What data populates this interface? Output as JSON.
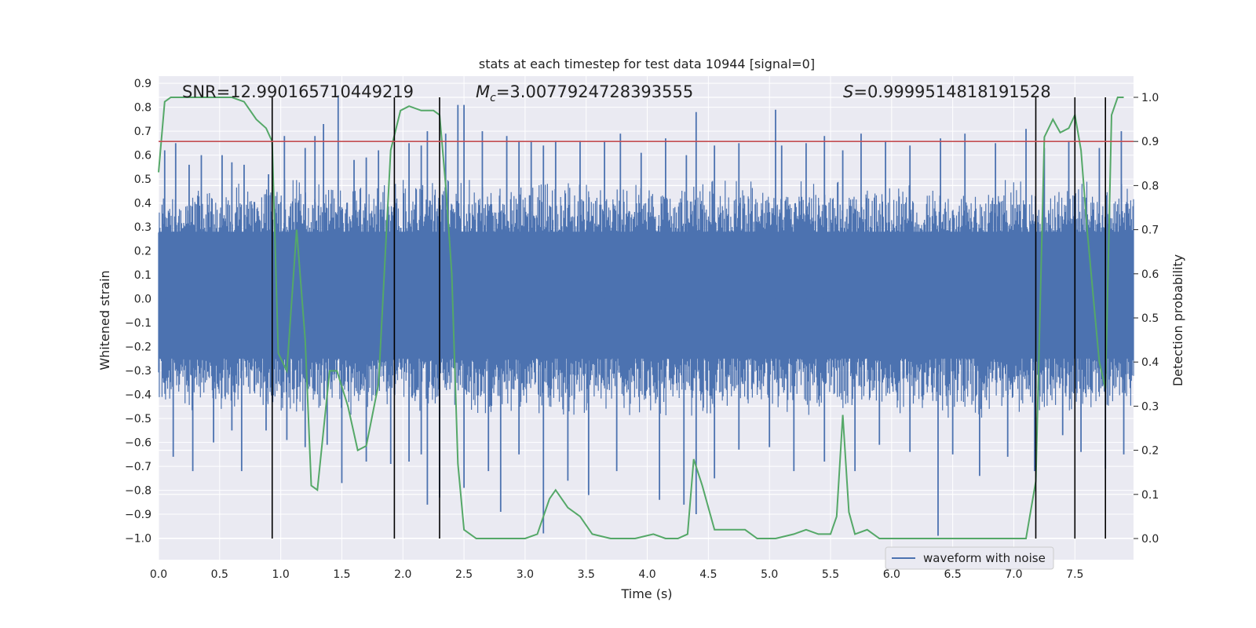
{
  "chart_data": {
    "type": "line",
    "title": "stats at each timestep for test data 10944 [signal=0]",
    "xlabel": "Time (s)",
    "ylabel": "Whitened strain",
    "ylabel_right": "Detection probability",
    "xlim": [
      0.0,
      7.98
    ],
    "ylim": [
      -1.09,
      0.93
    ],
    "ylim_right": [
      -0.048,
      1.048
    ],
    "x_ticks": [
      "0.0",
      "0.5",
      "1.0",
      "1.5",
      "2.0",
      "2.5",
      "3.0",
      "3.5",
      "4.0",
      "4.5",
      "5.0",
      "5.5",
      "6.0",
      "6.5",
      "7.0",
      "7.5"
    ],
    "y_ticks": [
      "0.9",
      "0.8",
      "0.7",
      "0.6",
      "0.5",
      "0.4",
      "0.3",
      "0.2",
      "0.1",
      "0.0",
      "−0.1",
      "−0.2",
      "−0.3",
      "−0.4",
      "−0.5",
      "−0.6",
      "−0.7",
      "−0.8",
      "−0.9",
      "−1.0"
    ],
    "y_tick_values": [
      0.9,
      0.8,
      0.7,
      0.6,
      0.5,
      0.4,
      0.3,
      0.2,
      0.1,
      0.0,
      -0.1,
      -0.2,
      -0.3,
      -0.4,
      -0.5,
      -0.6,
      -0.7,
      -0.8,
      -0.9,
      -1.0
    ],
    "y_right_ticks": [
      "1.0",
      "0.9",
      "0.8",
      "0.7",
      "0.6",
      "0.5",
      "0.4",
      "0.3",
      "0.2",
      "0.1",
      "0.0"
    ],
    "y_right_tick_values": [
      1.0,
      0.9,
      0.8,
      0.7,
      0.6,
      0.5,
      0.4,
      0.3,
      0.2,
      0.1,
      0.0
    ],
    "annotations": {
      "snr": "SNR=12.990165710449219",
      "mc_symbol": "M",
      "mc_sub": "c",
      "mc_value": "=3.0077924728393555",
      "s_symbol": "S",
      "s_value": "=0.9999514818191528"
    },
    "threshold_right": 0.9,
    "event_lines_x": [
      0.93,
      1.93,
      2.3,
      7.18,
      7.5,
      7.75
    ],
    "waveform": {
      "name": "waveform with noise",
      "color": "#4c72b0",
      "envelope_upper": 0.45,
      "envelope_lower": -0.44,
      "spikes": [
        [
          0.05,
          0.62
        ],
        [
          0.14,
          0.65
        ],
        [
          0.25,
          0.56
        ],
        [
          0.35,
          0.6
        ],
        [
          0.52,
          0.6
        ],
        [
          0.6,
          0.57
        ],
        [
          0.7,
          0.56
        ],
        [
          0.9,
          0.52
        ],
        [
          1.03,
          0.68
        ],
        [
          1.2,
          0.63
        ],
        [
          1.28,
          0.68
        ],
        [
          1.35,
          0.73
        ],
        [
          1.47,
          0.85
        ],
        [
          1.6,
          0.58
        ],
        [
          1.7,
          0.59
        ],
        [
          1.8,
          0.62
        ],
        [
          2.05,
          0.65
        ],
        [
          2.15,
          0.64
        ],
        [
          2.2,
          0.7
        ],
        [
          2.35,
          0.69
        ],
        [
          2.45,
          0.81
        ],
        [
          2.5,
          0.81
        ],
        [
          2.65,
          0.7
        ],
        [
          2.85,
          0.68
        ],
        [
          2.95,
          0.66
        ],
        [
          3.05,
          0.66
        ],
        [
          3.15,
          0.64
        ],
        [
          3.25,
          0.66
        ],
        [
          3.45,
          0.66
        ],
        [
          3.65,
          0.66
        ],
        [
          3.78,
          0.69
        ],
        [
          3.95,
          0.61
        ],
        [
          4.15,
          0.67
        ],
        [
          4.32,
          0.6
        ],
        [
          4.4,
          0.78
        ],
        [
          4.55,
          0.64
        ],
        [
          4.75,
          0.65
        ],
        [
          5.05,
          0.79
        ],
        [
          5.1,
          0.64
        ],
        [
          5.3,
          0.65
        ],
        [
          5.45,
          0.68
        ],
        [
          5.6,
          0.62
        ],
        [
          5.75,
          0.69
        ],
        [
          5.95,
          0.66
        ],
        [
          6.15,
          0.64
        ],
        [
          6.4,
          0.67
        ],
        [
          6.6,
          0.69
        ],
        [
          6.85,
          0.65
        ],
        [
          7.1,
          0.71
        ],
        [
          7.25,
          0.63
        ],
        [
          7.45,
          0.66
        ],
        [
          7.7,
          0.63
        ],
        [
          7.88,
          0.7
        ],
        [
          0.12,
          -0.66
        ],
        [
          0.28,
          -0.72
        ],
        [
          0.45,
          -0.6
        ],
        [
          0.6,
          -0.55
        ],
        [
          0.68,
          -0.72
        ],
        [
          0.88,
          -0.55
        ],
        [
          1.05,
          -0.59
        ],
        [
          1.2,
          -0.62
        ],
        [
          1.38,
          -0.61
        ],
        [
          1.5,
          -0.77
        ],
        [
          1.7,
          -0.68
        ],
        [
          1.9,
          -0.69
        ],
        [
          2.05,
          -0.68
        ],
        [
          2.15,
          -0.65
        ],
        [
          2.2,
          -0.86
        ],
        [
          2.3,
          -0.83
        ],
        [
          2.5,
          -0.79
        ],
        [
          2.7,
          -0.72
        ],
        [
          2.8,
          -0.89
        ],
        [
          2.95,
          -0.65
        ],
        [
          3.15,
          -0.98
        ],
        [
          3.35,
          -0.76
        ],
        [
          3.52,
          -0.82
        ],
        [
          3.75,
          -0.72
        ],
        [
          4.1,
          -0.84
        ],
        [
          4.3,
          -0.86
        ],
        [
          4.4,
          -0.9
        ],
        [
          4.55,
          -0.75
        ],
        [
          4.75,
          -0.63
        ],
        [
          5.0,
          -0.62
        ],
        [
          5.2,
          -0.72
        ],
        [
          5.45,
          -0.68
        ],
        [
          5.7,
          -0.72
        ],
        [
          5.9,
          -0.61
        ],
        [
          6.15,
          -0.64
        ],
        [
          6.38,
          -0.99
        ],
        [
          6.5,
          -0.65
        ],
        [
          6.72,
          -0.74
        ],
        [
          6.95,
          -0.66
        ],
        [
          7.17,
          -0.72
        ],
        [
          7.4,
          -0.57
        ],
        [
          7.55,
          -0.64
        ],
        [
          7.75,
          -0.71
        ],
        [
          7.9,
          -0.65
        ]
      ]
    },
    "probability": {
      "name": "Detection probability",
      "color": "#55a868",
      "points": [
        [
          0.0,
          0.83
        ],
        [
          0.05,
          0.99
        ],
        [
          0.1,
          1.0
        ],
        [
          0.2,
          1.0
        ],
        [
          0.3,
          1.0
        ],
        [
          0.4,
          1.0
        ],
        [
          0.5,
          1.0
        ],
        [
          0.6,
          1.0
        ],
        [
          0.7,
          0.99
        ],
        [
          0.8,
          0.95
        ],
        [
          0.88,
          0.93
        ],
        [
          0.93,
          0.9
        ],
        [
          0.98,
          0.42
        ],
        [
          1.05,
          0.38
        ],
        [
          1.13,
          0.7
        ],
        [
          1.2,
          0.45
        ],
        [
          1.25,
          0.12
        ],
        [
          1.3,
          0.11
        ],
        [
          1.4,
          0.38
        ],
        [
          1.46,
          0.38
        ],
        [
          1.55,
          0.3
        ],
        [
          1.63,
          0.2
        ],
        [
          1.7,
          0.21
        ],
        [
          1.8,
          0.35
        ],
        [
          1.9,
          0.88
        ],
        [
          1.98,
          0.97
        ],
        [
          2.05,
          0.98
        ],
        [
          2.15,
          0.97
        ],
        [
          2.25,
          0.97
        ],
        [
          2.3,
          0.96
        ],
        [
          2.35,
          0.8
        ],
        [
          2.4,
          0.6
        ],
        [
          2.45,
          0.17
        ],
        [
          2.5,
          0.02
        ],
        [
          2.6,
          0.0
        ],
        [
          2.8,
          0.0
        ],
        [
          3.0,
          0.0
        ],
        [
          3.1,
          0.01
        ],
        [
          3.2,
          0.09
        ],
        [
          3.25,
          0.11
        ],
        [
          3.35,
          0.07
        ],
        [
          3.45,
          0.05
        ],
        [
          3.55,
          0.01
        ],
        [
          3.7,
          0.0
        ],
        [
          3.9,
          0.0
        ],
        [
          4.05,
          0.01
        ],
        [
          4.15,
          0.0
        ],
        [
          4.25,
          0.0
        ],
        [
          4.33,
          0.01
        ],
        [
          4.38,
          0.18
        ],
        [
          4.45,
          0.12
        ],
        [
          4.55,
          0.02
        ],
        [
          4.6,
          0.02
        ],
        [
          4.7,
          0.02
        ],
        [
          4.8,
          0.02
        ],
        [
          4.9,
          0.0
        ],
        [
          5.05,
          0.0
        ],
        [
          5.2,
          0.01
        ],
        [
          5.3,
          0.02
        ],
        [
          5.4,
          0.01
        ],
        [
          5.5,
          0.01
        ],
        [
          5.55,
          0.05
        ],
        [
          5.6,
          0.28
        ],
        [
          5.65,
          0.06
        ],
        [
          5.7,
          0.01
        ],
        [
          5.8,
          0.02
        ],
        [
          5.9,
          0.0
        ],
        [
          6.0,
          0.0
        ],
        [
          6.2,
          0.0
        ],
        [
          6.5,
          0.0
        ],
        [
          6.8,
          0.0
        ],
        [
          7.0,
          0.0
        ],
        [
          7.1,
          0.0
        ],
        [
          7.18,
          0.13
        ],
        [
          7.25,
          0.91
        ],
        [
          7.32,
          0.95
        ],
        [
          7.38,
          0.92
        ],
        [
          7.45,
          0.93
        ],
        [
          7.5,
          0.96
        ],
        [
          7.55,
          0.88
        ],
        [
          7.6,
          0.7
        ],
        [
          7.65,
          0.55
        ],
        [
          7.7,
          0.4
        ],
        [
          7.75,
          0.34
        ],
        [
          7.8,
          0.96
        ],
        [
          7.85,
          1.0
        ],
        [
          7.9,
          1.0
        ]
      ]
    },
    "legend": {
      "entries": [
        "waveform with noise"
      ],
      "position": "lower-center-right"
    },
    "grid": true
  }
}
